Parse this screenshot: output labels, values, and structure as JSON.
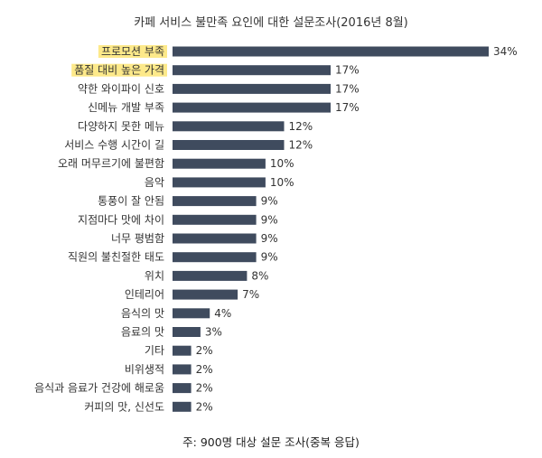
{
  "chart_data": {
    "type": "bar",
    "orientation": "horizontal",
    "title": "카페 서비스 불만족 요인에 대한 설문조사(2016년 8월)",
    "note": "주: 900명 대상 설문 조사(중복 응답)",
    "categories": [
      "프로모션 부족",
      "품질 대비 높은 가격",
      "약한 와이파이 신호",
      "신메뉴 개발 부족",
      "다양하지 못한 메뉴",
      "서비스 수행 시간이 길",
      "오래 머무르기에 불편함",
      "음악",
      "통풍이 잘 안됨",
      "지점마다 맛에 차이",
      "너무 평범함",
      "직원의 불친절한 태도",
      "위치",
      "인테리어",
      "음식의 맛",
      "음료의 맛",
      "기타",
      "비위생적",
      "음식과 음료가 건강에 해로움",
      "커피의 맛, 신선도"
    ],
    "values": [
      34,
      17,
      17,
      17,
      12,
      12,
      10,
      10,
      9,
      9,
      9,
      9,
      8,
      7,
      4,
      3,
      2,
      2,
      2,
      2
    ],
    "value_labels": [
      "34%",
      "17%",
      "17%",
      "17%",
      "12%",
      "12%",
      "10%",
      "10%",
      "9%",
      "9%",
      "9%",
      "9%",
      "8%",
      "7%",
      "4%",
      "3%",
      "2%",
      "2%",
      "2%",
      "2%"
    ],
    "highlighted": [
      "프로모션 부족",
      "품질 대비 높은 가격"
    ],
    "xlim": [
      0,
      34
    ],
    "grid": false,
    "legend": "none"
  },
  "colors": {
    "bar": "#3f4b5e",
    "highlight": "#fde98a",
    "text": "#333333"
  }
}
